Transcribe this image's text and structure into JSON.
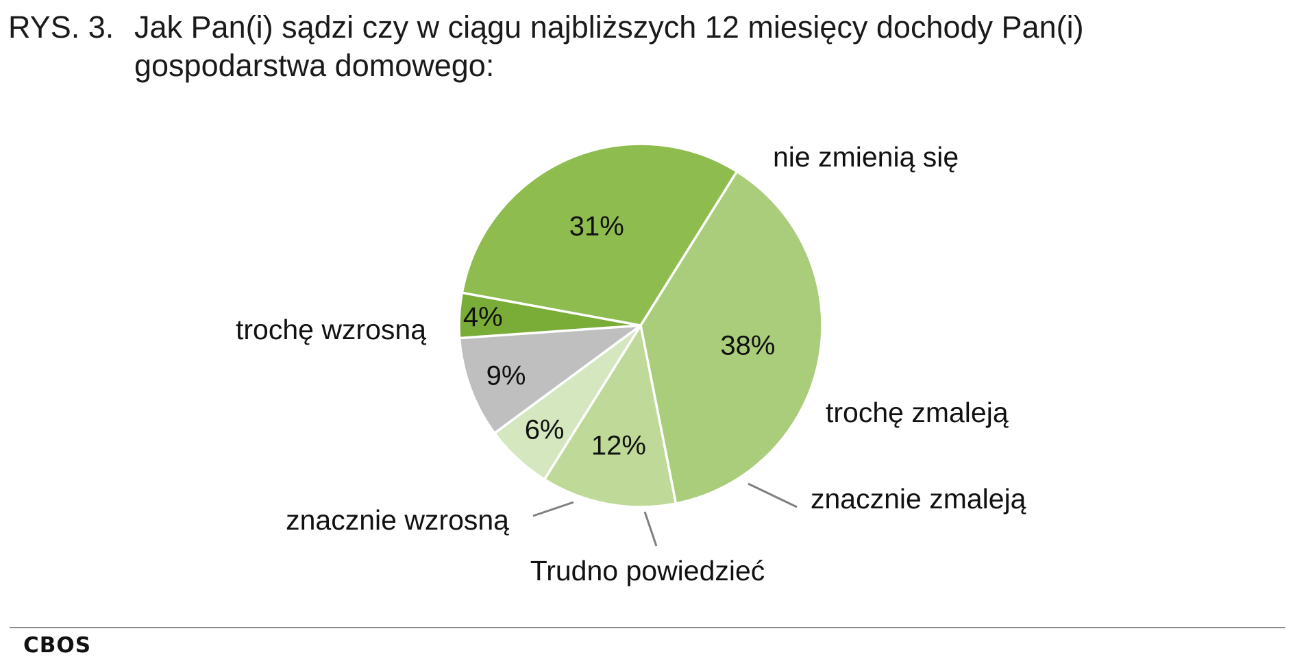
{
  "figure": {
    "label": "RYS. 3.",
    "title": "Jak Pan(i) sądzi czy w ciągu najbliższych 12 miesięcy dochody Pan(i) gospodarstwa domowego:"
  },
  "chart_data": {
    "type": "pie",
    "title": "Jak Pan(i) sądzi czy w ciągu najbliższych 12 miesięcy dochody Pan(i) gospodarstwa domowego:",
    "unit": "%",
    "slices": [
      {
        "label": "nie zmienią się",
        "value": 38,
        "value_label": "38%",
        "color": "#a9cd7a"
      },
      {
        "label": "trochę zmaleją",
        "value": 12,
        "value_label": "12%",
        "color": "#bfda98"
      },
      {
        "label": "znacznie zmaleją",
        "value": 6,
        "value_label": "6%",
        "color": "#d5e7bf"
      },
      {
        "label": "Trudno powiedzieć",
        "value": 9,
        "value_label": "9%",
        "color": "#bfbfbf"
      },
      {
        "label": "znacznie wzrosną",
        "value": 4,
        "value_label": "4%",
        "color": "#7aac38"
      },
      {
        "label": "trochę wzrosną",
        "value": 31,
        "value_label": "31%",
        "color": "#8fbc4e"
      }
    ],
    "legend": "none"
  },
  "footer": {
    "source": "CBOS"
  }
}
